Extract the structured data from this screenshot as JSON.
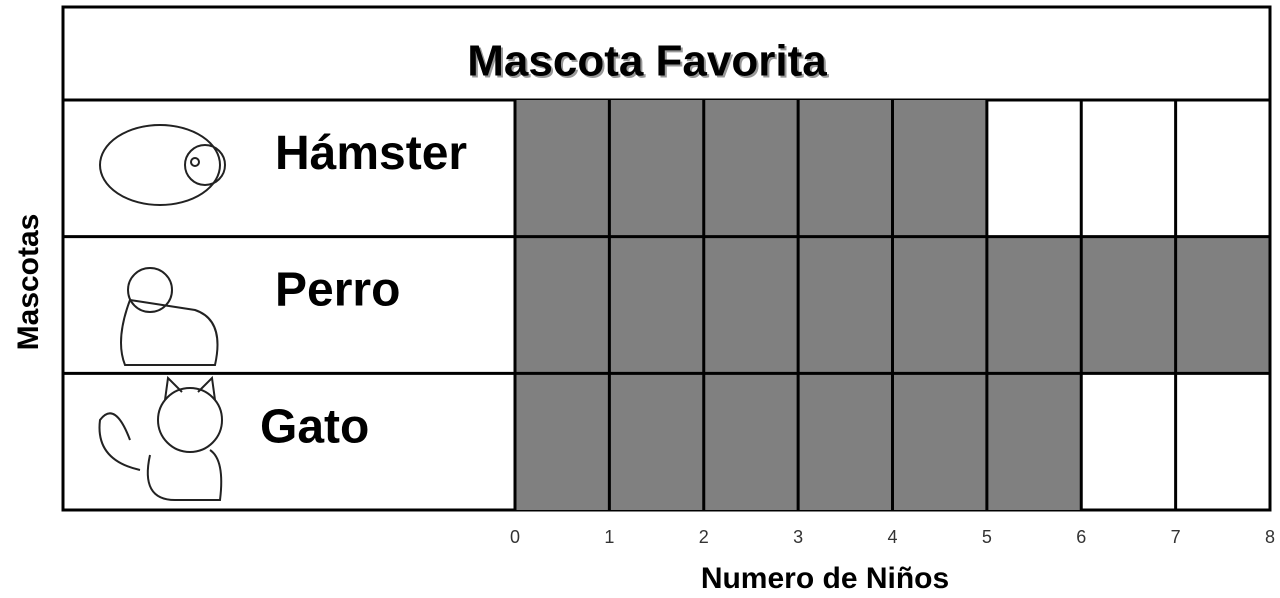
{
  "chart_data": {
    "type": "barh",
    "title": "Mascota Favorita",
    "categories": [
      "Hámster",
      "Perro",
      "Gato"
    ],
    "values": [
      5,
      8,
      6
    ],
    "color": "#808080",
    "xlim": [
      0,
      8
    ],
    "xticks": [
      0,
      1,
      2,
      3,
      4,
      5,
      6,
      7,
      8
    ],
    "xlabel": "Numero de Niños",
    "ylabel": "Mascotas",
    "grid": true
  }
}
